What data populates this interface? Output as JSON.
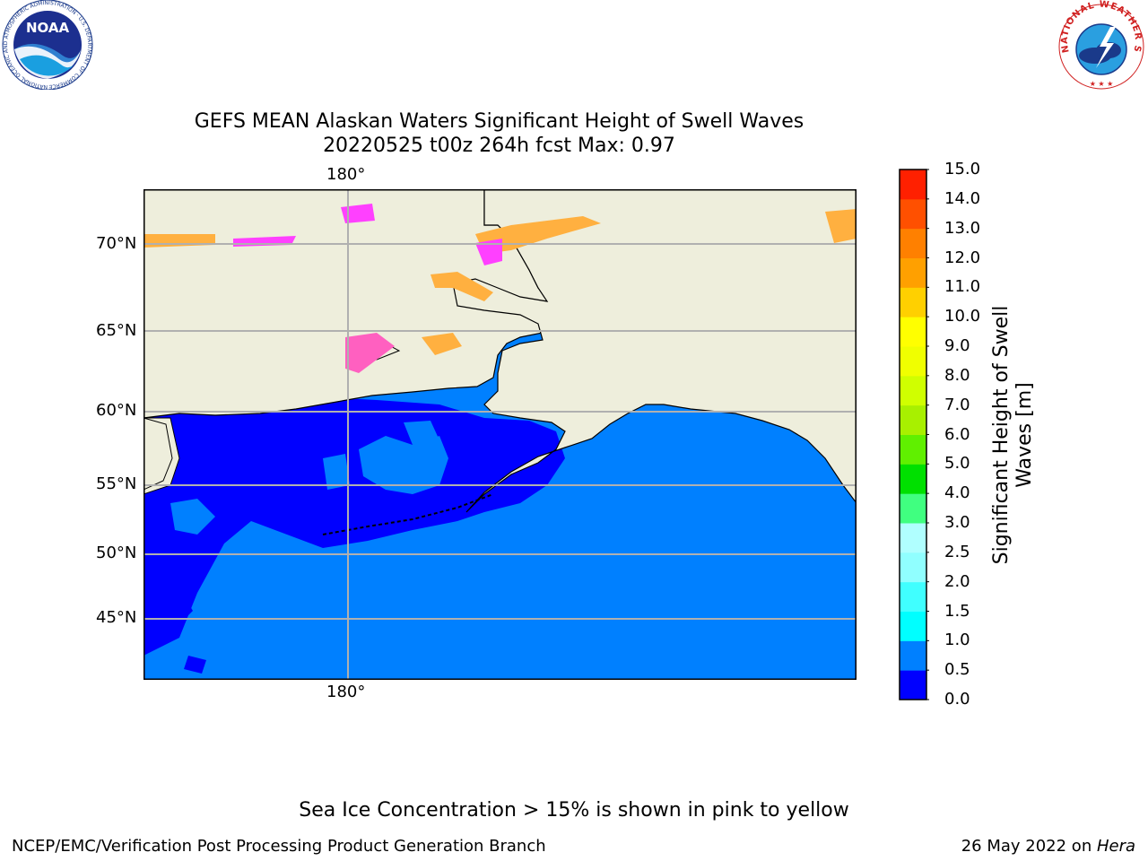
{
  "header": {
    "title_line1": "GEFS MEAN Alaskan Waters Significant Height of Swell Waves",
    "title_line2": "20220525 t00z 264h fcst   Max: 0.97"
  },
  "logos": {
    "noaa_text": "NOAA",
    "noaa_ring": "NATIONAL OCEANIC AND ATMOSPHERIC ADMINISTRATION · U.S. DEPARTMENT OF COMMERCE",
    "nws_ring": "NATIONAL WEATHER SERVICE"
  },
  "map": {
    "lon_label_top": "180°",
    "lon_label_bottom": "180°",
    "lat_labels": [
      "70°N",
      "65°N",
      "60°N",
      "55°N",
      "50°N",
      "45°N"
    ],
    "colors": {
      "land": "#eeeedc",
      "sea_low": "#0000ff",
      "sea_mid": "#0080ff",
      "grid": "#b0b0b0"
    }
  },
  "colorbar": {
    "label": "Significant Height of Swell Waves [m]",
    "label_line1": "Significant Height of Swell",
    "label_line2": "Waves [m]",
    "ticks": [
      "0.0",
      "0.5",
      "1.0",
      "1.5",
      "2.0",
      "2.5",
      "3.0",
      "4.0",
      "5.0",
      "6.0",
      "7.0",
      "8.0",
      "9.0",
      "10.0",
      "11.0",
      "12.0",
      "13.0",
      "14.0",
      "15.0"
    ],
    "colors": [
      "#0000ff",
      "#0080ff",
      "#00ffff",
      "#40ffff",
      "#90ffff",
      "#b0ffff",
      "#40ff80",
      "#00e000",
      "#60f000",
      "#a8f000",
      "#d0ff00",
      "#f0ff00",
      "#ffff00",
      "#ffd000",
      "#ffa000",
      "#ff8000",
      "#ff5000",
      "#ff2000",
      "#ff0000"
    ]
  },
  "footer": {
    "note": "Sea Ice Concentration > 15% is shown in pink to yellow",
    "credit": "NCEP/EMC/Verification Post Processing Product Generation Branch",
    "date": "26 May 2022 on ",
    "machine": "Hera"
  }
}
